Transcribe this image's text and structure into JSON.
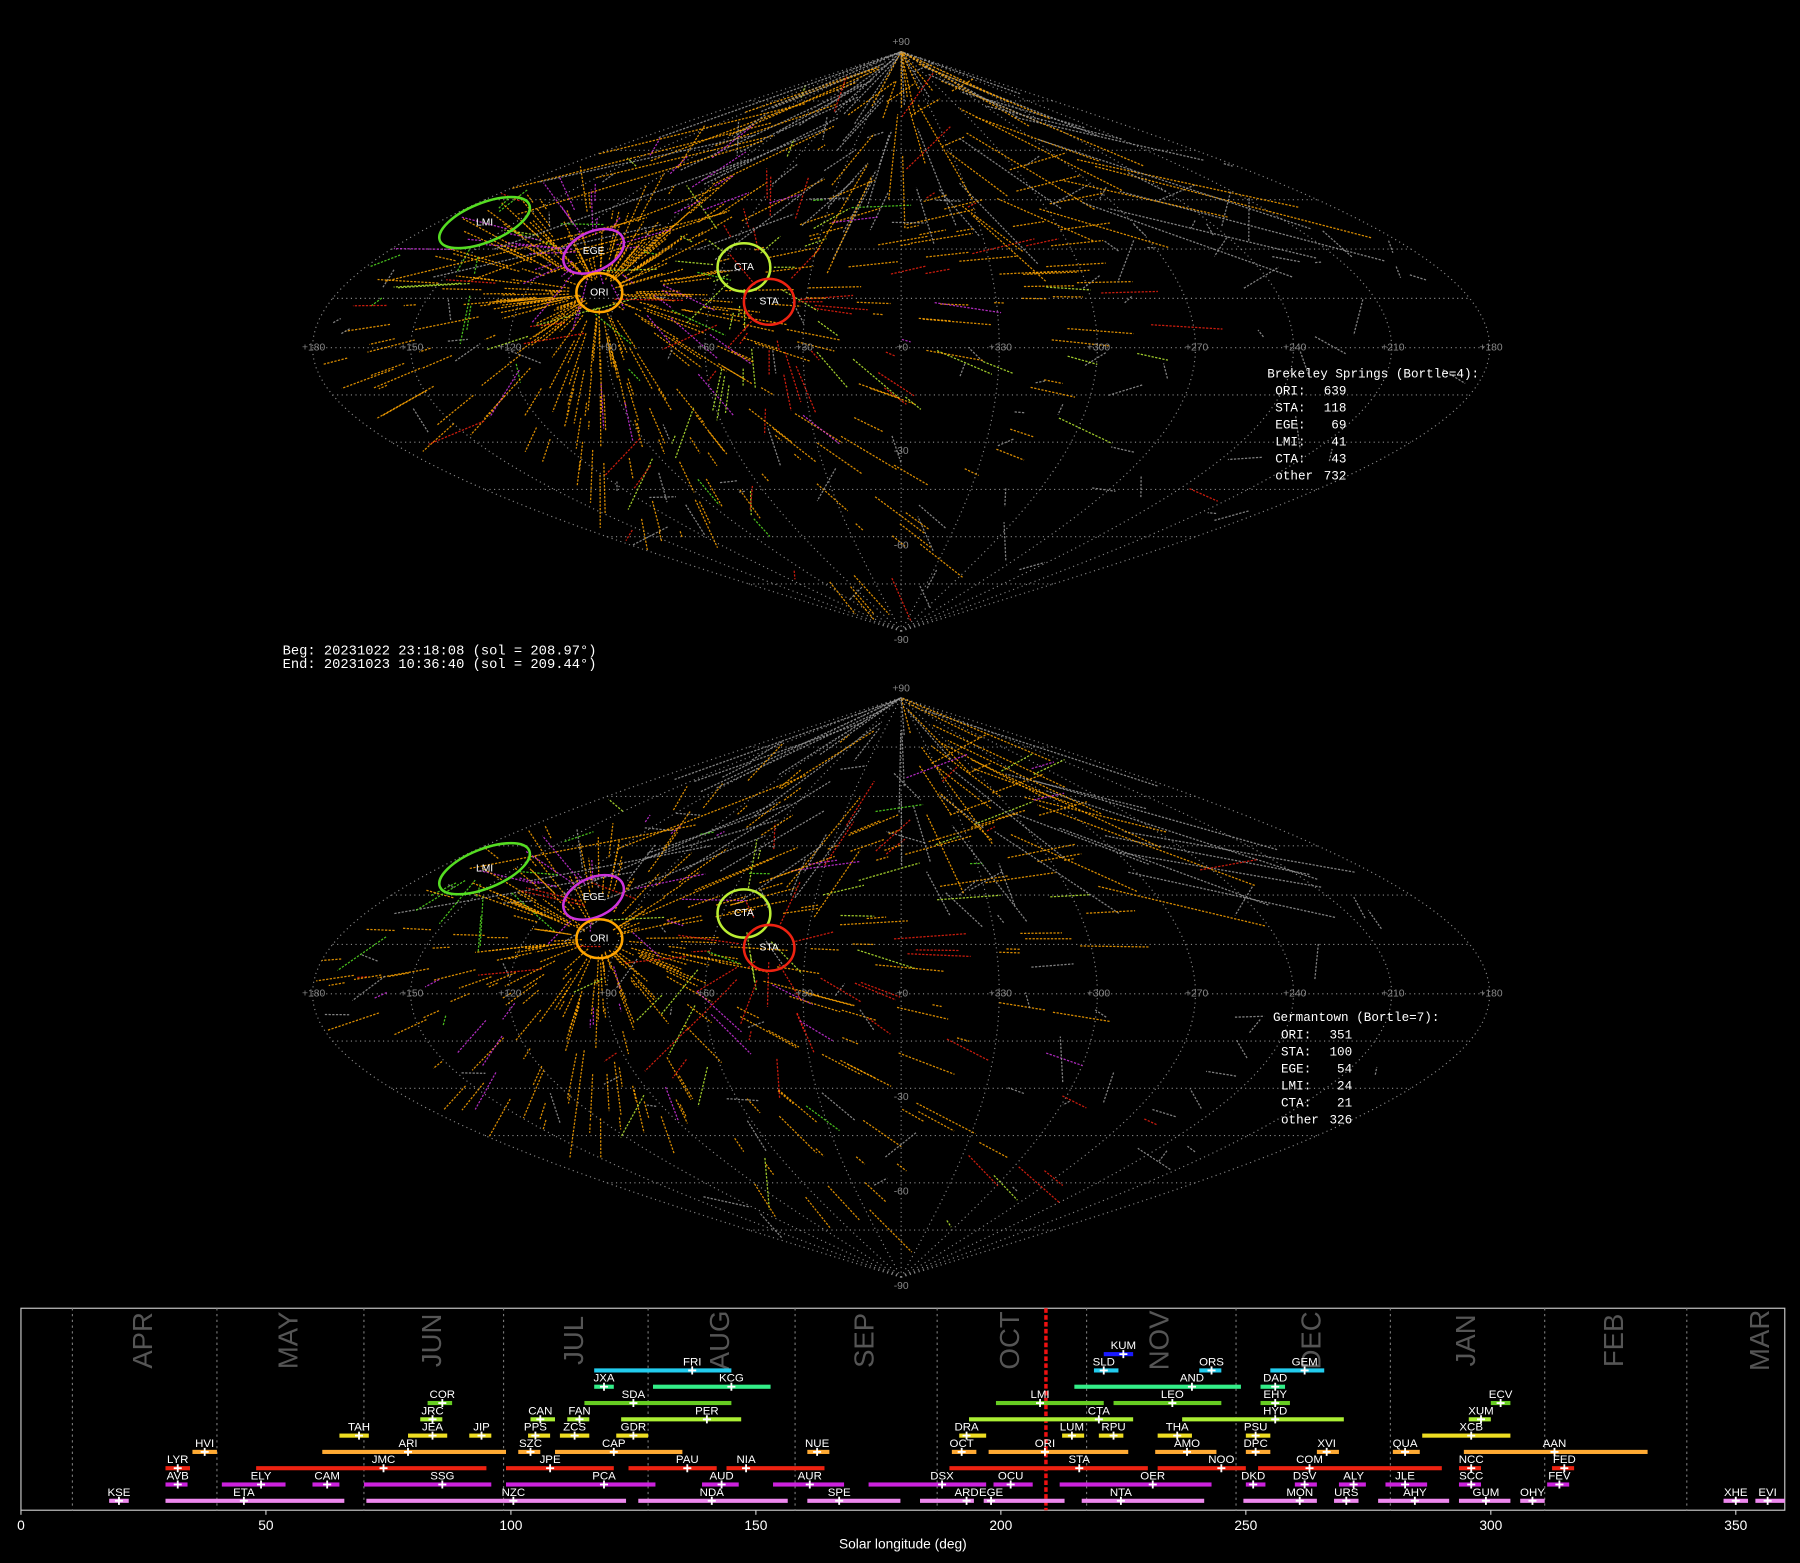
{
  "sky_maps": {
    "lon_labels": [
      "+180",
      "+150",
      "+120",
      "+90",
      "+60",
      "+30",
      "+0",
      "+330",
      "+300",
      "+270",
      "+240",
      "+210",
      "+180"
    ],
    "lat_labels": [
      "+90",
      "-30",
      "-60",
      "-90"
    ],
    "shower_markers": [
      "LMI",
      "EGE",
      "ORI",
      "CTA",
      "STA"
    ],
    "panels": [
      {
        "title": "Brekeley Springs (Bortle=4):",
        "counts": [
          {
            "label": "ORI:",
            "n": 639
          },
          {
            "label": "STA:",
            "n": 118
          },
          {
            "label": "EGE:",
            "n": 69
          },
          {
            "label": "LMI:",
            "n": 41
          },
          {
            "label": "CTA:",
            "n": 43
          },
          {
            "label": "other",
            "n": 732
          }
        ]
      },
      {
        "title": "Germantown (Bortle=7):",
        "counts": [
          {
            "label": "ORI:",
            "n": 351
          },
          {
            "label": "STA:",
            "n": 100
          },
          {
            "label": "EGE:",
            "n": 54
          },
          {
            "label": "LMI:",
            "n": 24
          },
          {
            "label": "CTA:",
            "n": 21
          },
          {
            "label": "other",
            "n": 326
          }
        ]
      }
    ]
  },
  "time_range": {
    "beg": "Beg: 20231022 23:18:08 (sol = 208.97°)",
    "end": "End: 20231023 10:36:40 (sol = 209.44°)"
  },
  "chart_data": {
    "type": "timeline",
    "xlabel": "Solar longitude (deg)",
    "xlim": [
      0,
      360
    ],
    "xticks": [
      0,
      50,
      100,
      150,
      200,
      250,
      300,
      350
    ],
    "months": [
      "APR",
      "MAY",
      "JUN",
      "JUL",
      "AUG",
      "SEP",
      "OCT",
      "NOV",
      "DEC",
      "JAN",
      "FEB",
      "MAR"
    ],
    "month_boundaries": [
      10.5,
      40,
      70,
      98.5,
      128,
      158,
      187,
      217.5,
      248,
      279.5,
      311,
      340
    ],
    "current_sol": 209.2,
    "rows": [
      {
        "color": "#1a1aff",
        "showers": [
          {
            "code": "KUM",
            "start": 221,
            "end": 227,
            "peak": 225
          }
        ]
      },
      {
        "color": "#22ccee",
        "showers": [
          {
            "code": "FRI",
            "start": 117,
            "end": 145,
            "peak": 137
          },
          {
            "code": "SLD",
            "start": 219,
            "end": 224,
            "peak": 221
          },
          {
            "code": "ORS",
            "start": 240.5,
            "end": 245,
            "peak": 243
          },
          {
            "code": "GEM",
            "start": 255,
            "end": 266,
            "peak": 262
          }
        ]
      },
      {
        "color": "#33ee88",
        "showers": [
          {
            "code": "JXA",
            "start": 117,
            "end": 121,
            "peak": 119
          },
          {
            "code": "KCG",
            "start": 129,
            "end": 153,
            "peak": 145
          },
          {
            "code": "AND",
            "start": 215,
            "end": 249,
            "peak": 239
          },
          {
            "code": "DAD",
            "start": 253,
            "end": 258,
            "peak": 256
          }
        ]
      },
      {
        "color": "#66cc22",
        "showers": [
          {
            "code": "COR",
            "start": 83,
            "end": 88,
            "peak": 86
          },
          {
            "code": "SDA",
            "start": 115,
            "end": 145,
            "peak": 125
          },
          {
            "code": "LMI",
            "start": 199,
            "end": 221,
            "peak": 208
          },
          {
            "code": "LEO",
            "start": 223,
            "end": 245,
            "peak": 235
          },
          {
            "code": "EHY",
            "start": 253,
            "end": 259,
            "peak": 256
          },
          {
            "code": "ECV",
            "start": 300,
            "end": 304,
            "peak": 302
          }
        ]
      },
      {
        "color": "#aaee33",
        "showers": [
          {
            "code": "JRC",
            "start": 81.5,
            "end": 86,
            "peak": 84
          },
          {
            "code": "CAN",
            "start": 104,
            "end": 109,
            "peak": 106
          },
          {
            "code": "FAN",
            "start": 111.5,
            "end": 116,
            "peak": 114
          },
          {
            "code": "PER",
            "start": 122.5,
            "end": 147,
            "peak": 140
          },
          {
            "code": "CTA",
            "start": 193.5,
            "end": 227,
            "peak": 220
          },
          {
            "code": "HYD",
            "start": 237,
            "end": 270,
            "peak": 256
          },
          {
            "code": "XUM",
            "start": 295.5,
            "end": 300,
            "peak": 298
          }
        ]
      },
      {
        "color": "#eedd22",
        "showers": [
          {
            "code": "TAH",
            "start": 65,
            "end": 71,
            "peak": 69
          },
          {
            "code": "JEA",
            "start": 79,
            "end": 87,
            "peak": 84
          },
          {
            "code": "JIP",
            "start": 91.5,
            "end": 96,
            "peak": 94
          },
          {
            "code": "PPS",
            "start": 103.5,
            "end": 108,
            "peak": 105
          },
          {
            "code": "ZCS",
            "start": 110,
            "end": 116,
            "peak": 113
          },
          {
            "code": "GDR",
            "start": 121.5,
            "end": 128,
            "peak": 125
          },
          {
            "code": "DRA",
            "start": 191.5,
            "end": 197,
            "peak": 193
          },
          {
            "code": "LUM",
            "start": 212.5,
            "end": 217,
            "peak": 214.5
          },
          {
            "code": "RPU",
            "start": 220,
            "end": 225,
            "peak": 223
          },
          {
            "code": "THA",
            "start": 232,
            "end": 239,
            "peak": 236
          },
          {
            "code": "PSU",
            "start": 250,
            "end": 255,
            "peak": 252
          },
          {
            "code": "XCB",
            "start": 286,
            "end": 304,
            "peak": 296
          }
        ]
      },
      {
        "color": "#ffaa33",
        "showers": [
          {
            "code": "HVI",
            "start": 35,
            "end": 40,
            "peak": 37.5
          },
          {
            "code": "ARI",
            "start": 61.5,
            "end": 99,
            "peak": 79
          },
          {
            "code": "SZC",
            "start": 101.5,
            "end": 106,
            "peak": 104
          },
          {
            "code": "CAP",
            "start": 109,
            "end": 135,
            "peak": 121
          },
          {
            "code": "NUE",
            "start": 160.5,
            "end": 165,
            "peak": 162.5
          },
          {
            "code": "OCT",
            "start": 190,
            "end": 195,
            "peak": 192
          },
          {
            "code": "ORI",
            "start": 197.5,
            "end": 226,
            "peak": 209
          },
          {
            "code": "AMO",
            "start": 231.5,
            "end": 244,
            "peak": 238
          },
          {
            "code": "DPC",
            "start": 250,
            "end": 255,
            "peak": 252
          },
          {
            "code": "XVI",
            "start": 264.5,
            "end": 269,
            "peak": 266.5
          },
          {
            "code": "QUA",
            "start": 280,
            "end": 285.5,
            "peak": 282.5
          },
          {
            "code": "AAN",
            "start": 294.5,
            "end": 332,
            "peak": 313
          }
        ]
      },
      {
        "color": "#ee2211",
        "showers": [
          {
            "code": "LYR",
            "start": 29.5,
            "end": 34.5,
            "peak": 32
          },
          {
            "code": "JMC",
            "start": 48,
            "end": 95,
            "peak": 74
          },
          {
            "code": "JPE",
            "start": 99,
            "end": 121,
            "peak": 108
          },
          {
            "code": "PAU",
            "start": 124,
            "end": 142,
            "peak": 136
          },
          {
            "code": "NIA",
            "start": 144,
            "end": 164,
            "peak": 148
          },
          {
            "code": "STA",
            "start": 189.5,
            "end": 230,
            "peak": 216
          },
          {
            "code": "NOO",
            "start": 232,
            "end": 250,
            "peak": 245
          },
          {
            "code": "COM",
            "start": 252.5,
            "end": 290,
            "peak": 263
          },
          {
            "code": "NCC",
            "start": 293.5,
            "end": 298,
            "peak": 296
          },
          {
            "code": "FED",
            "start": 312.5,
            "end": 317,
            "peak": 315
          }
        ]
      },
      {
        "color": "#cc22dd",
        "showers": [
          {
            "code": "AVB",
            "start": 29.5,
            "end": 34,
            "peak": 32
          },
          {
            "code": "ELY",
            "start": 41,
            "end": 54,
            "peak": 49
          },
          {
            "code": "CAM",
            "start": 59.5,
            "end": 65,
            "peak": 62.5
          },
          {
            "code": "SSG",
            "start": 70,
            "end": 96,
            "peak": 86
          },
          {
            "code": "PCA",
            "start": 99,
            "end": 129.5,
            "peak": 119
          },
          {
            "code": "AUD",
            "start": 139,
            "end": 146.5,
            "peak": 143
          },
          {
            "code": "AUR",
            "start": 153.5,
            "end": 168,
            "peak": 161
          },
          {
            "code": "DSX",
            "start": 173,
            "end": 197,
            "peak": 188
          },
          {
            "code": "OCU",
            "start": 198.5,
            "end": 206.5,
            "peak": 202
          },
          {
            "code": "OER",
            "start": 212,
            "end": 243,
            "peak": 231
          },
          {
            "code": "DKD",
            "start": 250,
            "end": 254,
            "peak": 251.5
          },
          {
            "code": "DSV",
            "start": 260,
            "end": 264.5,
            "peak": 262
          },
          {
            "code": "ALY",
            "start": 269,
            "end": 274.5,
            "peak": 272
          },
          {
            "code": "JLE",
            "start": 278.5,
            "end": 287,
            "peak": 282.5
          },
          {
            "code": "SCC",
            "start": 293.5,
            "end": 298,
            "peak": 296
          },
          {
            "code": "FEV",
            "start": 311.5,
            "end": 316,
            "peak": 314
          }
        ]
      },
      {
        "color": "#ee88ee",
        "showers": [
          {
            "code": "KSE",
            "start": 18,
            "end": 22,
            "peak": 20
          },
          {
            "code": "ETA",
            "start": 29.5,
            "end": 66,
            "peak": 45.5
          },
          {
            "code": "NZC",
            "start": 70.5,
            "end": 123.5,
            "peak": 100.5
          },
          {
            "code": "NDA",
            "start": 126,
            "end": 156.5,
            "peak": 141
          },
          {
            "code": "SPE",
            "start": 160.5,
            "end": 179.5,
            "peak": 167
          },
          {
            "code": "ARD",
            "start": 183.5,
            "end": 194.5,
            "peak": 193
          },
          {
            "code": "EGE",
            "start": 196.5,
            "end": 213,
            "peak": 198
          },
          {
            "code": "NTA",
            "start": 216.5,
            "end": 241.5,
            "peak": 224.5
          },
          {
            "code": "MON",
            "start": 249.5,
            "end": 264.5,
            "peak": 261
          },
          {
            "code": "URS",
            "start": 268,
            "end": 273,
            "peak": 270.5
          },
          {
            "code": "AHY",
            "start": 277,
            "end": 291.5,
            "peak": 284.5
          },
          {
            "code": "GUM",
            "start": 293.5,
            "end": 304,
            "peak": 299
          },
          {
            "code": "OHY",
            "start": 306,
            "end": 311,
            "peak": 308.5
          },
          {
            "code": "XHE",
            "start": 347.5,
            "end": 352.5,
            "peak": 350
          },
          {
            "code": "EVI",
            "start": 354,
            "end": 360,
            "peak": 356.5
          }
        ]
      }
    ]
  }
}
